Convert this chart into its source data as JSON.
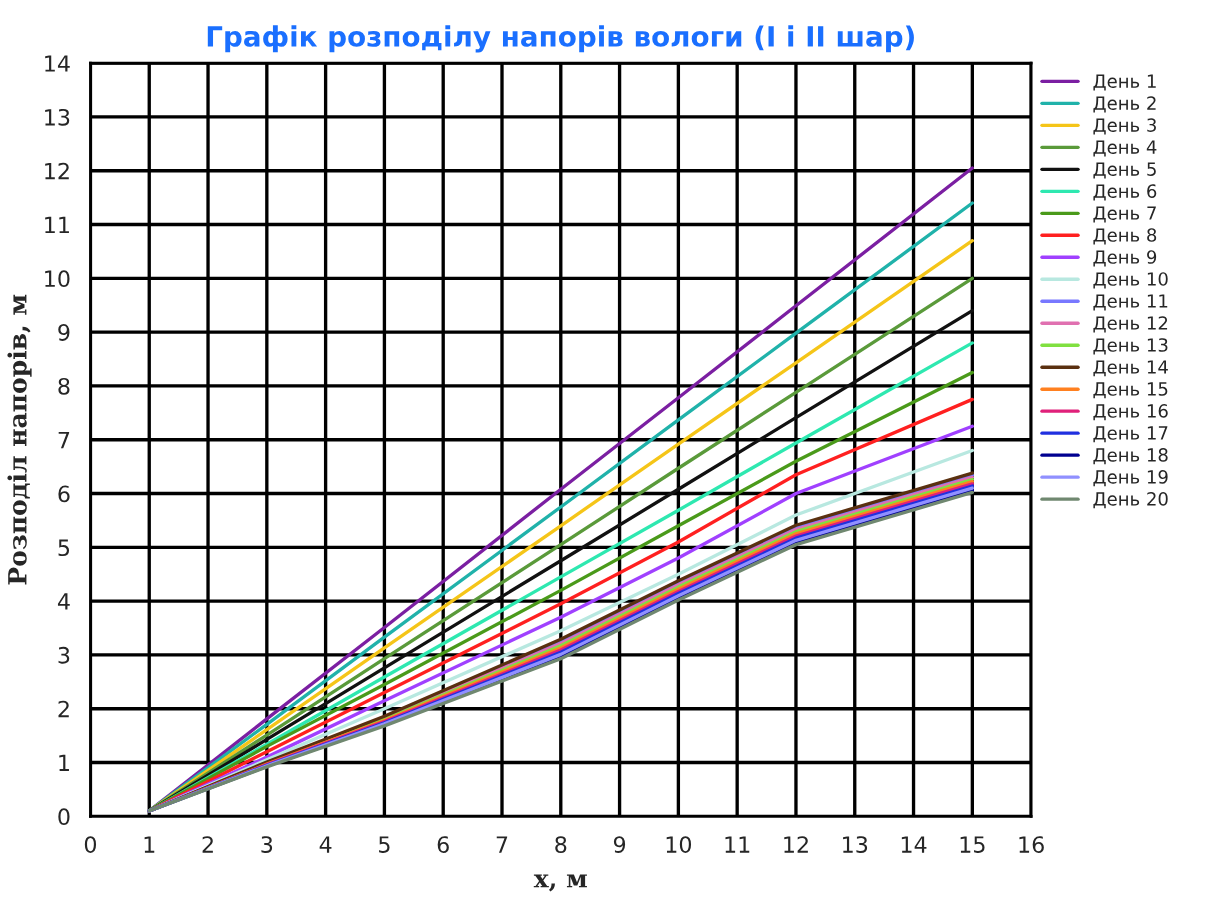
{
  "chart_data": {
    "type": "line",
    "title": "Графік розподілу напорів вологи (I і II шар)",
    "xlabel": "x, м",
    "ylabel": "Розподіл напорів, м",
    "xlim": [
      0,
      16
    ],
    "xticks": [
      0,
      1,
      2,
      3,
      4,
      5,
      6,
      7,
      8,
      9,
      10,
      11,
      12,
      13,
      14,
      15,
      16
    ],
    "ylim": [
      0,
      14
    ],
    "yticks": [
      0,
      1,
      2,
      3,
      4,
      5,
      6,
      7,
      8,
      9,
      10,
      11,
      12,
      13,
      14
    ],
    "grid": true,
    "legend": "right",
    "marker": "none",
    "line_style": "solid",
    "x": [
      1,
      3,
      5,
      8,
      10,
      12,
      15
    ],
    "series": [
      {
        "name": "День 1",
        "color": "#7b1fa2",
        "values": [
          0.1,
          1.81,
          3.51,
          6.08,
          7.78,
          9.49,
          12.05
        ]
      },
      {
        "name": "День 2",
        "color": "#20b2aa",
        "values": [
          0.1,
          1.71,
          3.33,
          5.75,
          7.37,
          8.98,
          11.4
        ]
      },
      {
        "name": "День 3",
        "color": "#f5c518",
        "values": [
          0.1,
          1.61,
          3.13,
          5.4,
          6.92,
          8.43,
          10.7
        ]
      },
      {
        "name": "День 4",
        "color": "#5a9a3a",
        "values": [
          0.1,
          1.51,
          2.93,
          5.05,
          6.47,
          7.88,
          10.0
        ]
      },
      {
        "name": "День 5",
        "color": "#111111",
        "values": [
          0.1,
          1.43,
          2.76,
          4.75,
          6.08,
          7.41,
          9.4
        ]
      },
      {
        "name": "День 6",
        "color": "#2ee8b0",
        "values": [
          0.1,
          1.34,
          2.59,
          4.45,
          5.69,
          6.94,
          8.8
        ]
      },
      {
        "name": "День 7",
        "color": "#4a9a1a",
        "values": [
          0.1,
          1.3,
          2.45,
          4.2,
          5.4,
          6.6,
          8.25
        ]
      },
      {
        "name": "День 8",
        "color": "#ff2020",
        "values": [
          0.1,
          1.2,
          2.3,
          3.95,
          5.1,
          6.35,
          7.75
        ]
      },
      {
        "name": "День 9",
        "color": "#a040ff",
        "values": [
          0.1,
          1.1,
          2.15,
          3.7,
          4.8,
          6.0,
          7.25
        ]
      },
      {
        "name": "День 10",
        "color": "#b8e8e0",
        "values": [
          0.1,
          1.05,
          2.0,
          3.45,
          4.5,
          5.6,
          6.8
        ]
      },
      {
        "name": "День 11",
        "color": "#7878ff",
        "values": [
          0.1,
          1.0,
          1.84,
          3.25,
          4.34,
          5.37,
          6.34
        ]
      },
      {
        "name": "День 12",
        "color": "#e070b0",
        "values": [
          0.1,
          0.99,
          1.82,
          3.21,
          4.3,
          5.33,
          6.3
        ]
      },
      {
        "name": "День 13",
        "color": "#80e040",
        "values": [
          0.1,
          0.98,
          1.8,
          3.17,
          4.26,
          5.29,
          6.26
        ]
      },
      {
        "name": "День 14",
        "color": "#5a3010",
        "values": [
          0.1,
          1.01,
          1.86,
          3.29,
          4.38,
          5.41,
          6.38
        ]
      },
      {
        "name": "День 15",
        "color": "#ff8020",
        "values": [
          0.1,
          0.97,
          1.78,
          3.13,
          4.22,
          5.25,
          6.22
        ]
      },
      {
        "name": "День 16",
        "color": "#e0207a",
        "values": [
          0.1,
          0.96,
          1.76,
          3.09,
          4.18,
          5.21,
          6.18
        ]
      },
      {
        "name": "День 17",
        "color": "#2030e0",
        "values": [
          0.1,
          0.95,
          1.74,
          3.05,
          4.14,
          5.17,
          6.14
        ]
      },
      {
        "name": "День 18",
        "color": "#000090",
        "values": [
          0.1,
          0.93,
          1.7,
          2.97,
          4.06,
          5.09,
          6.06
        ]
      },
      {
        "name": "День 19",
        "color": "#9090ff",
        "values": [
          0.1,
          0.94,
          1.72,
          3.01,
          4.1,
          5.13,
          6.1
        ]
      },
      {
        "name": "День 20",
        "color": "#708870",
        "values": [
          0.1,
          0.92,
          1.68,
          2.93,
          4.02,
          5.05,
          6.02
        ]
      }
    ]
  }
}
